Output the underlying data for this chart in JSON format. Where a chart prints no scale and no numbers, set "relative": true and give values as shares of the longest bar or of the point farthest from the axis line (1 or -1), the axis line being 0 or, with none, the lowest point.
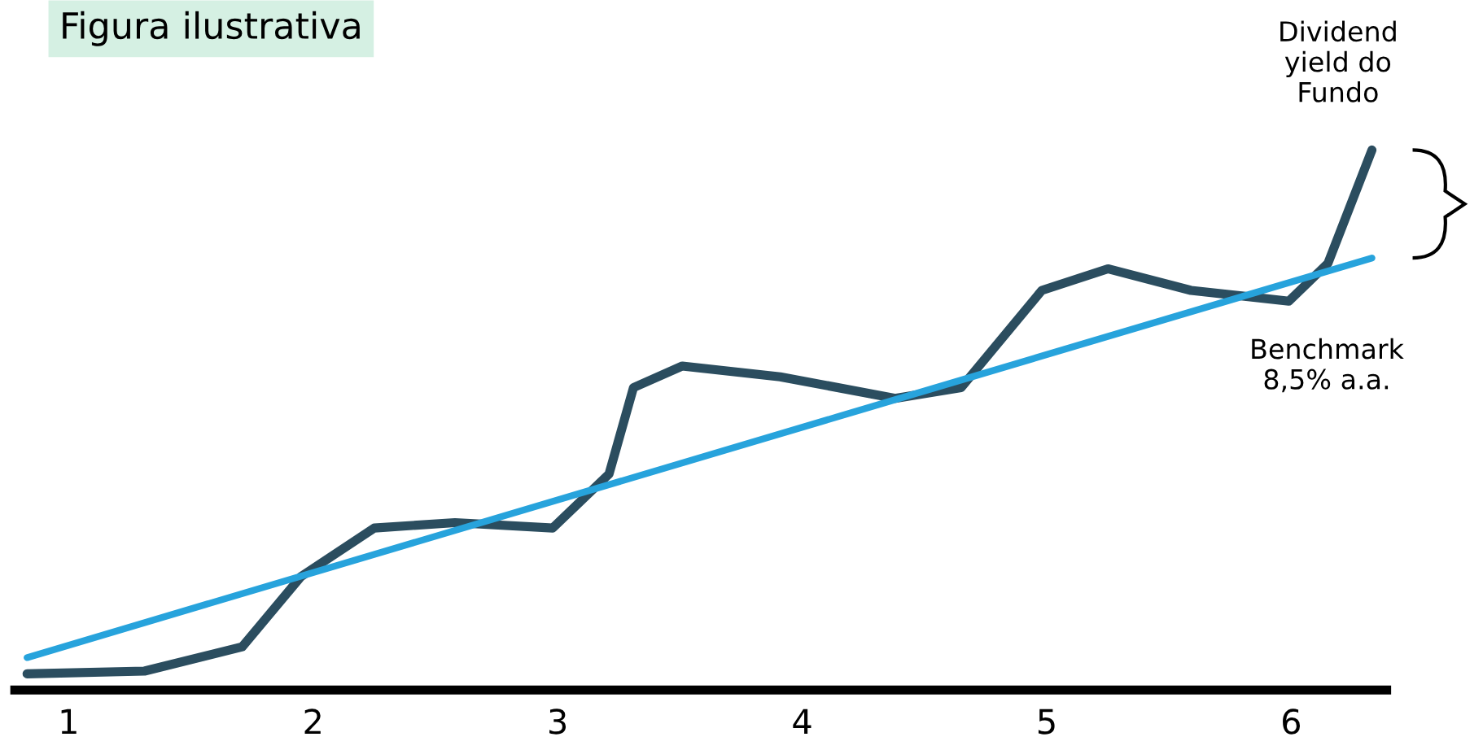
{
  "chart_data": {
    "type": "line",
    "title": "Figura ilustrativa",
    "relative": true,
    "x": [
      0.83,
      1.31,
      1.71,
      1.95,
      2.25,
      2.58,
      2.98,
      3.21,
      3.31,
      3.51,
      3.91,
      4.38,
      4.65,
      4.98,
      5.25,
      5.59,
      5.99,
      6.15,
      6.33
    ],
    "xlim": [
      0.78,
      6.39
    ],
    "xticks": [
      1,
      2,
      3,
      4,
      5,
      6
    ],
    "grid": false,
    "legend": false,
    "series": [
      {
        "color": "#2b4d5f",
        "values": [
          0.03,
          0.035,
          0.08,
          0.21,
          0.3,
          0.31,
          0.3,
          0.4,
          0.56,
          0.6,
          0.58,
          0.54,
          0.56,
          0.74,
          0.78,
          0.74,
          0.72,
          0.79,
          1.0
        ]
      },
      {
        "color": "#27a3dc",
        "x": [
          0.83,
          6.33
        ],
        "values": [
          0.06,
          0.8
        ]
      }
    ],
    "annotations": [
      {
        "text": "Dividend yield do Fundo",
        "x": 6.33,
        "y": 1.0
      },
      {
        "text": "Benchmark 8,5% a.a.",
        "x": 6.33,
        "y": 0.8
      }
    ]
  }
}
